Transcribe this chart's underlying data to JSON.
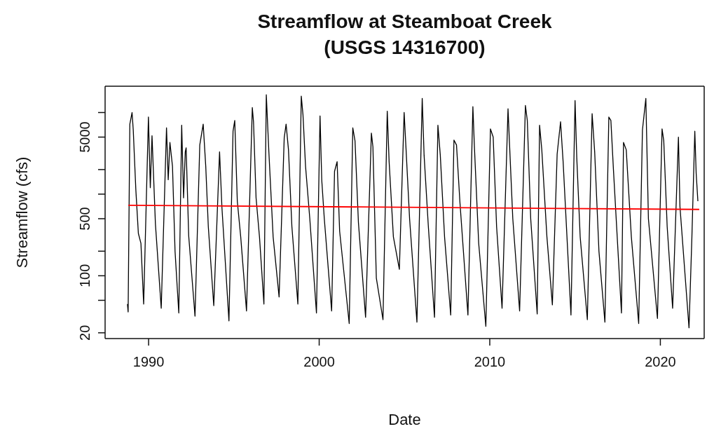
{
  "chart_data": {
    "type": "line",
    "title": "Streamflow at Steamboat Creek\n(USGS 14316700)",
    "xlabel": "Date",
    "ylabel": "Streamflow (cfs)",
    "log": "y",
    "xlim": [
      1987.45,
      2022.57
    ],
    "xticks": [
      1990,
      2000,
      2010,
      2020
    ],
    "ylim": [
      17,
      21000
    ],
    "yticks": [
      20,
      {
        "value": 50,
        "label": null
      },
      100,
      {
        "value": 200,
        "label": null
      },
      500,
      {
        "value": 1000,
        "label": null
      },
      {
        "value": 2000,
        "label": null
      },
      5000,
      {
        "value": 10000,
        "label": null
      }
    ],
    "series": [
      {
        "color": "#000000",
        "x": [
          1988.76,
          1988.8,
          1988.9,
          1989.03,
          1989.1,
          1989.25,
          1989.4,
          1989.55,
          1989.71,
          1989.99,
          1990.1,
          1990.2,
          1990.4,
          1990.74,
          1991.05,
          1991.15,
          1991.25,
          1991.4,
          1991.55,
          1991.77,
          1991.94,
          1992.05,
          1992.15,
          1992.2,
          1992.35,
          1992.72,
          1993.0,
          1993.2,
          1993.35,
          1993.5,
          1993.82,
          1994.16,
          1994.3,
          1994.71,
          1994.95,
          1995.05,
          1995.2,
          1995.4,
          1995.74,
          1996.08,
          1996.15,
          1996.3,
          1996.5,
          1996.76,
          1996.9,
          1997.05,
          1997.3,
          1997.65,
          1997.95,
          1998.06,
          1998.2,
          1998.4,
          1998.75,
          1998.95,
          1999.05,
          1999.2,
          1999.45,
          1999.84,
          2000.05,
          2000.15,
          2000.3,
          2000.73,
          2000.9,
          2001.05,
          2001.2,
          2001.76,
          2001.97,
          2002.1,
          2002.3,
          2002.72,
          2003.06,
          2003.15,
          2003.35,
          2003.74,
          2003.99,
          2004.1,
          2004.35,
          2004.7,
          2004.98,
          2005.1,
          2005.3,
          2005.73,
          2006.04,
          2006.15,
          2006.4,
          2006.76,
          2006.96,
          2007.1,
          2007.35,
          2007.71,
          2007.9,
          2008.05,
          2008.25,
          2008.72,
          2009.01,
          2009.1,
          2009.35,
          2009.77,
          2010.04,
          2010.2,
          2010.4,
          2010.72,
          2011.07,
          2011.15,
          2011.35,
          2011.75,
          2012.09,
          2012.2,
          2012.4,
          2012.78,
          2012.92,
          2013.05,
          2013.35,
          2013.67,
          2013.95,
          2014.15,
          2014.3,
          2014.76,
          2015.0,
          2015.1,
          2015.3,
          2015.72,
          2016.0,
          2016.15,
          2016.4,
          2016.75,
          2016.98,
          2017.1,
          2017.25,
          2017.72,
          2017.84,
          2018.0,
          2018.3,
          2018.73,
          2018.95,
          2019.15,
          2019.3,
          2019.83,
          2020.1,
          2020.2,
          2020.4,
          2020.72,
          2021.06,
          2021.15,
          2021.68,
          2021.85,
          2022.02,
          2022.1,
          2022.2
        ],
        "values": [
          45,
          36,
          7200,
          10000,
          6100,
          1150,
          330,
          250,
          45,
          8800,
          1200,
          5200,
          430,
          40,
          6500,
          1500,
          4300,
          2200,
          200,
          35,
          7000,
          900,
          3300,
          3700,
          310,
          32,
          4000,
          7200,
          2200,
          400,
          43,
          3300,
          680,
          28,
          5900,
          8000,
          820,
          300,
          37,
          11500,
          7700,
          900,
          300,
          45,
          16500,
          3300,
          300,
          55,
          4900,
          7200,
          3500,
          400,
          45,
          15900,
          9400,
          2200,
          500,
          35,
          9100,
          1500,
          500,
          37,
          1900,
          2500,
          350,
          26,
          6500,
          4500,
          450,
          31,
          5600,
          3800,
          94,
          29,
          10400,
          2500,
          300,
          120,
          10000,
          3300,
          500,
          27,
          14900,
          3000,
          400,
          31,
          7000,
          3000,
          300,
          33,
          4600,
          4000,
          800,
          33,
          11800,
          3800,
          250,
          24,
          6300,
          5000,
          400,
          40,
          11100,
          4500,
          500,
          37,
          12200,
          8000,
          500,
          34,
          7000,
          3500,
          300,
          44,
          3100,
          7700,
          2500,
          33,
          14000,
          2800,
          300,
          29,
          9700,
          3300,
          200,
          27,
          8800,
          8000,
          2000,
          35,
          4300,
          3500,
          300,
          26,
          6100,
          14900,
          500,
          30,
          6300,
          4500,
          400,
          40,
          5000,
          700,
          23,
          300,
          5900,
          1800,
          820
        ]
      },
      {
        "color": "#ff0000",
        "x": [
          1988.81,
          2022.28
        ],
        "values": [
          730,
          650
        ]
      }
    ]
  }
}
